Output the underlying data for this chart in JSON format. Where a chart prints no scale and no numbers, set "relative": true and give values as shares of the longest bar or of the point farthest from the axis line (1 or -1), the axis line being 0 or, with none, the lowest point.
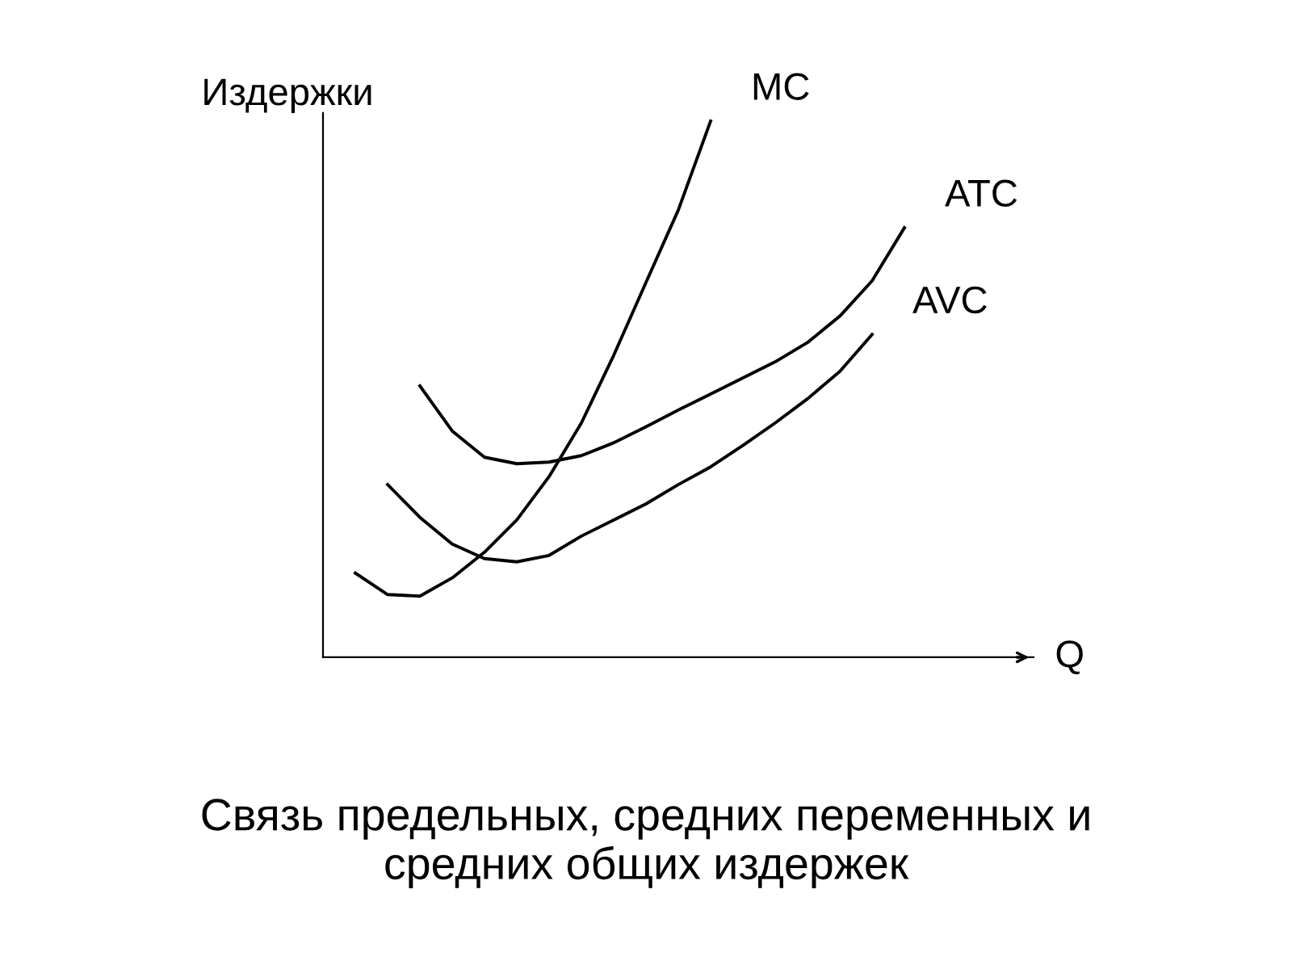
{
  "chart_data": {
    "type": "line",
    "relative": true,
    "ylabel": "Издержки",
    "xlabel": "Q",
    "legend": false,
    "marker": "none",
    "line_style": "solid",
    "categories": [
      null,
      null,
      null,
      null,
      null,
      null,
      null,
      null,
      null,
      null,
      null,
      null,
      null,
      null,
      null,
      null,
      null,
      null,
      null,
      null,
      null,
      null,
      null
    ],
    "series": [
      {
        "name": "MC",
        "color": "#000000",
        "values": [
          null,
          0.157,
          0.117,
          0.114,
          0.148,
          0.196,
          0.256,
          0.337,
          0.437,
          0.563,
          0.699,
          0.834,
          1.0,
          null,
          null,
          null,
          null,
          null,
          null,
          null,
          null,
          null,
          null
        ]
      },
      {
        "name": "ATC",
        "color": "#000000",
        "values": [
          null,
          null,
          null,
          0.506,
          0.422,
          0.373,
          0.361,
          0.364,
          0.376,
          0.4,
          0.43,
          0.461,
          0.491,
          0.521,
          0.551,
          0.587,
          0.636,
          0.702,
          0.801,
          null,
          null,
          null,
          null
        ]
      },
      {
        "name": "AVC",
        "color": "#000000",
        "values": [
          null,
          null,
          0.322,
          0.261,
          0.211,
          0.184,
          0.178,
          0.19,
          0.226,
          0.256,
          0.286,
          0.322,
          0.355,
          0.395,
          0.437,
          0.482,
          0.533,
          0.602,
          null,
          null,
          null,
          null,
          null
        ]
      }
    ],
    "annotations": [
      "Связь предельных, средних переменных и\nсредних общих издержек"
    ]
  }
}
